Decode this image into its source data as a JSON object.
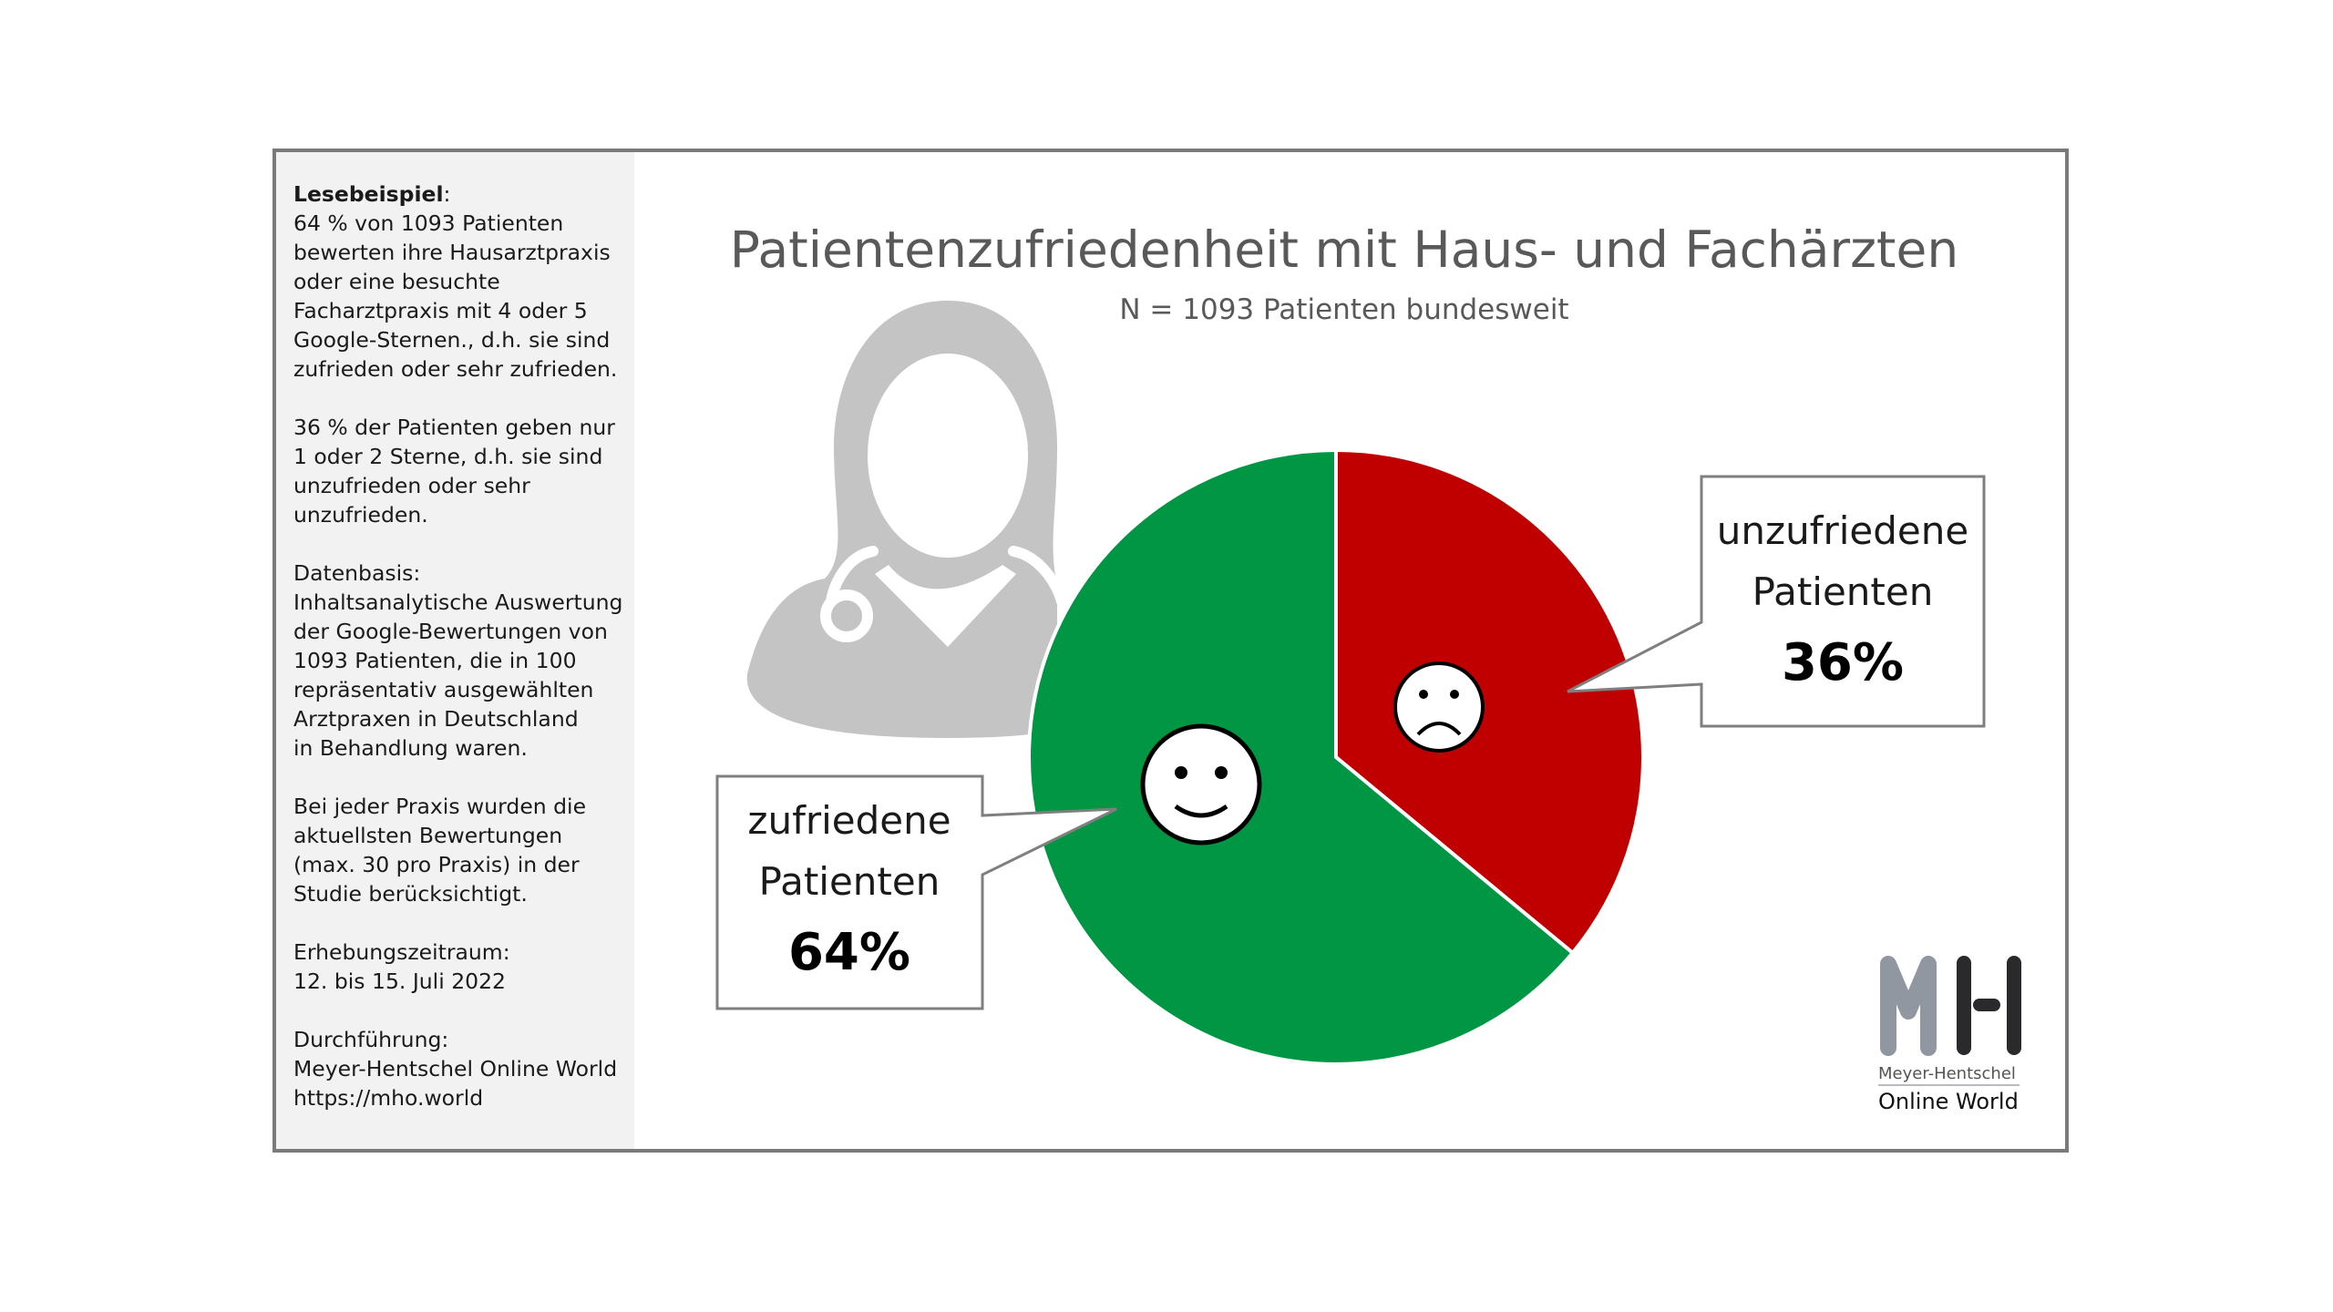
{
  "sidebar": {
    "reading_example_heading": "Lesebeispiel",
    "reading_example_colon": ":",
    "reading_example_text": "64 % von 1093 Patienten\nbewerten ihre Hausarztpraxis\noder eine besuchte\nFacharztpraxis mit 4 oder 5\nGoogle-Sternen., d.h. sie sind\nzufrieden oder sehr zufrieden.",
    "unsatisfied_text": "36 % der Patienten geben nur\n1 oder 2 Sterne, d.h. sie sind\nunzufrieden oder sehr\nunzufrieden.",
    "data_basis": "Datenbasis:\nInhaltsanalytische Auswertung\nder Google-Bewertungen von\n1093 Patienten, die in 100\nrepräsentativ ausgewählten\nArztpraxen in Deutschland\nin Behandlung waren.",
    "method": "Bei jeder Praxis wurden die\naktuellsten Bewertungen\n(max. 30 pro Praxis) in der\nStudie berücksichtigt.",
    "period": "Erhebungszeitraum:\n12. bis 15. Juli 2022",
    "conducted_by": "Durchführung:\nMeyer-Hentschel Online World\nhttps://mho.world"
  },
  "chart_data": {
    "type": "pie",
    "title": "Patientenzufriedenheit mit Haus- und Fachärzten",
    "subtitle": "N = 1093 Patienten bundesweit",
    "slices": [
      {
        "label_line1": "unzufriedene",
        "label_line2": "Patienten",
        "value": 36,
        "value_label": "36%",
        "color": "#c00000",
        "icon": "sad-face-icon"
      },
      {
        "label_line1": "zufriedene",
        "label_line2": "Patienten",
        "value": 64,
        "value_label": "64%",
        "color": "#009644",
        "icon": "happy-face-icon"
      }
    ],
    "start": "top",
    "direction": "clockwise"
  },
  "illustration": {
    "icon": "female-doctor-icon",
    "color": "#c4c4c4"
  },
  "logo": {
    "letters": "MH",
    "line1": "Meyer-Hentschel",
    "line2": "Online World"
  }
}
